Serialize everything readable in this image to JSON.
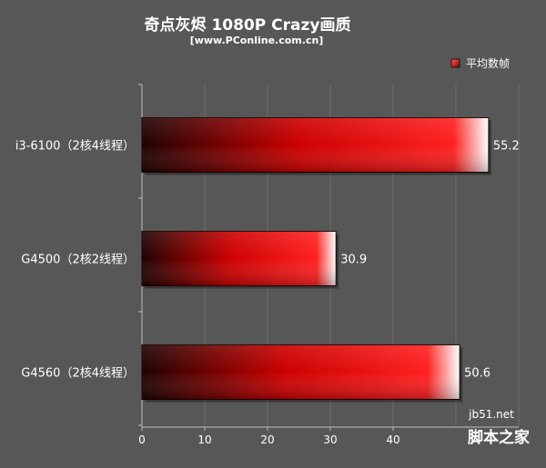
{
  "chart_data": {
    "type": "bar",
    "orientation": "horizontal",
    "title": "奇点灰烬 1080P Crazy画质",
    "subtitle": "[www.PConline.com.cn]",
    "categories": [
      "i3-6100（2核4线程）",
      "G4500（2核2线程）",
      "G4560（2核4线程）"
    ],
    "series": [
      {
        "name": "平均数帧",
        "values": [
          55.2,
          30.9,
          50.6
        ]
      }
    ],
    "value_labels": [
      "55.2",
      "30.9",
      "50.6"
    ],
    "xlim": [
      0,
      60
    ],
    "x_ticks": [
      0,
      10,
      20,
      30,
      40
    ],
    "grid": true,
    "legend_position": "top-right",
    "colors": {
      "background": "#575757",
      "plot_background": "#575757",
      "bar_dark": "#1e0202",
      "bar_mid": "#cc0000",
      "bar_bright": "#ff2020",
      "bar_highlight": "#ffffff",
      "grid": "#6e6e6e",
      "axis": "#bdbdbd",
      "text": "#ffffff"
    }
  },
  "watermark": {
    "site": "jb51.net",
    "name": "脚本之家"
  }
}
